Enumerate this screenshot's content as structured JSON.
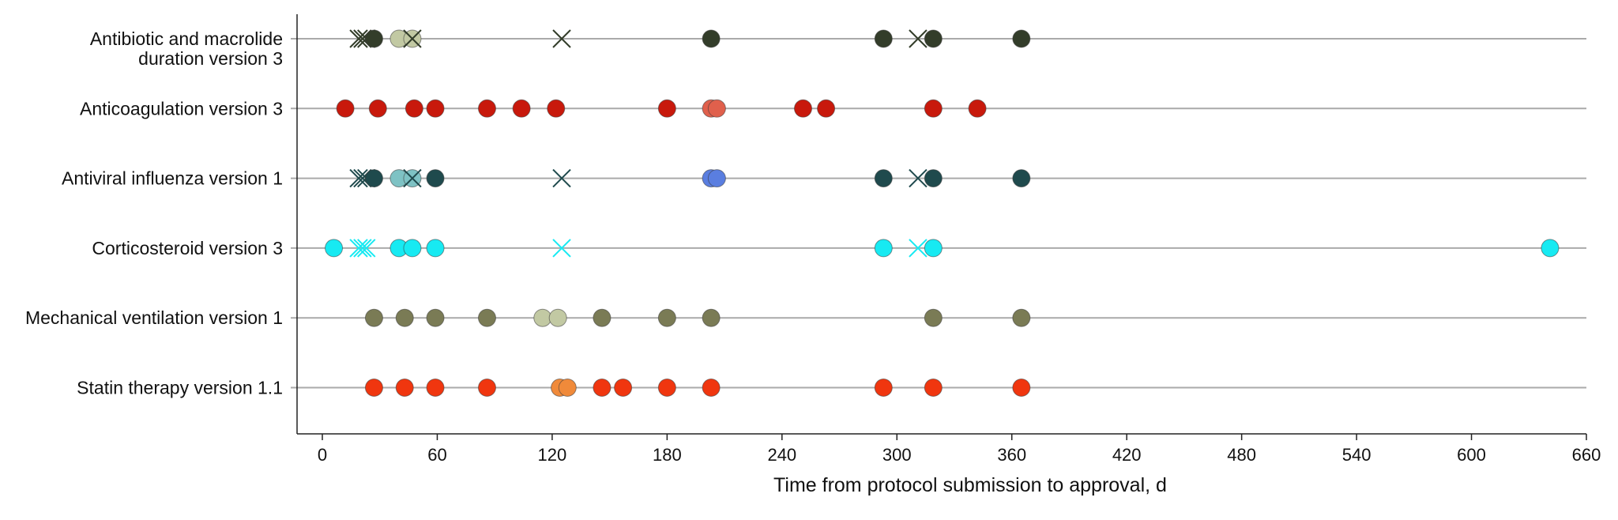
{
  "chart_data": {
    "type": "scatter",
    "title": "",
    "xlabel": "Time from protocol submission to approval, d",
    "ylabel": "",
    "xlim": [
      -13,
      660
    ],
    "xticks": [
      0,
      60,
      120,
      180,
      240,
      300,
      360,
      420,
      480,
      540,
      600,
      660
    ],
    "grid": "horizontal row lines only",
    "legend": "none",
    "rows": [
      {
        "label_lines": [
          "Antibiotic and macrolide",
          "duration version 3"
        ],
        "line_color": "#aaaaaa",
        "points": [
          {
            "x": 19,
            "marker": "x",
            "color": "#333d2a"
          },
          {
            "x": 21,
            "marker": "x",
            "color": "#333d2a"
          },
          {
            "x": 23,
            "marker": "x",
            "color": "#333d2a"
          },
          {
            "x": 27,
            "marker": "circle",
            "color": "#333d2a"
          },
          {
            "x": 40,
            "marker": "circle",
            "color": "#c2c9a3"
          },
          {
            "x": 47,
            "marker": "circle",
            "color": "#c2c9a3"
          },
          {
            "x": 47,
            "marker": "x",
            "color": "#333d2a"
          },
          {
            "x": 125,
            "marker": "x",
            "color": "#333d2a"
          },
          {
            "x": 203,
            "marker": "circle",
            "color": "#333d2a"
          },
          {
            "x": 293,
            "marker": "circle",
            "color": "#333d2a"
          },
          {
            "x": 311,
            "marker": "x",
            "color": "#333d2a"
          },
          {
            "x": 319,
            "marker": "circle",
            "color": "#333d2a"
          },
          {
            "x": 365,
            "marker": "circle",
            "color": "#333d2a"
          }
        ]
      },
      {
        "label_lines": [
          "Anticoagulation version 3"
        ],
        "line_color": "#aaaaaa",
        "points": [
          {
            "x": 12,
            "marker": "circle",
            "color": "#c8190c"
          },
          {
            "x": 29,
            "marker": "circle",
            "color": "#c8190c"
          },
          {
            "x": 48,
            "marker": "circle",
            "color": "#c8190c"
          },
          {
            "x": 59,
            "marker": "circle",
            "color": "#c8190c"
          },
          {
            "x": 86,
            "marker": "circle",
            "color": "#c8190c"
          },
          {
            "x": 104,
            "marker": "circle",
            "color": "#c8190c"
          },
          {
            "x": 122,
            "marker": "circle",
            "color": "#c8190c"
          },
          {
            "x": 180,
            "marker": "circle",
            "color": "#c8190c"
          },
          {
            "x": 203,
            "marker": "circle",
            "color": "#e0604c"
          },
          {
            "x": 206,
            "marker": "circle",
            "color": "#e0604c"
          },
          {
            "x": 251,
            "marker": "circle",
            "color": "#c8190c"
          },
          {
            "x": 263,
            "marker": "circle",
            "color": "#c8190c"
          },
          {
            "x": 319,
            "marker": "circle",
            "color": "#c8190c"
          },
          {
            "x": 342,
            "marker": "circle",
            "color": "#c8190c"
          }
        ]
      },
      {
        "label_lines": [
          "Antiviral influenza version 1"
        ],
        "line_color": "#aaaaaa",
        "points": [
          {
            "x": 19,
            "marker": "x",
            "color": "#1f4a4d"
          },
          {
            "x": 21,
            "marker": "x",
            "color": "#1f4a4d"
          },
          {
            "x": 23,
            "marker": "x",
            "color": "#1f4a4d"
          },
          {
            "x": 27,
            "marker": "circle",
            "color": "#1f4a4d"
          },
          {
            "x": 40,
            "marker": "circle",
            "color": "#7ec2c4"
          },
          {
            "x": 47,
            "marker": "circle",
            "color": "#7ec2c4"
          },
          {
            "x": 47,
            "marker": "x",
            "color": "#1f4a4d"
          },
          {
            "x": 59,
            "marker": "circle",
            "color": "#1f4a4d"
          },
          {
            "x": 125,
            "marker": "x",
            "color": "#1f4a4d"
          },
          {
            "x": 203,
            "marker": "circle",
            "color": "#5a7ee0"
          },
          {
            "x": 206,
            "marker": "circle",
            "color": "#5a7ee0"
          },
          {
            "x": 293,
            "marker": "circle",
            "color": "#1f4a4d"
          },
          {
            "x": 311,
            "marker": "x",
            "color": "#1f4a4d"
          },
          {
            "x": 319,
            "marker": "circle",
            "color": "#1f4a4d"
          },
          {
            "x": 365,
            "marker": "circle",
            "color": "#1f4a4d"
          }
        ]
      },
      {
        "label_lines": [
          "Corticosteroid version 3"
        ],
        "line_color": "#aaaaaa",
        "points": [
          {
            "x": 6,
            "marker": "circle",
            "color": "#17eaf2"
          },
          {
            "x": 19,
            "marker": "x",
            "color": "#17eaf2"
          },
          {
            "x": 21,
            "marker": "x",
            "color": "#17eaf2"
          },
          {
            "x": 23,
            "marker": "x",
            "color": "#17eaf2"
          },
          {
            "x": 40,
            "marker": "circle",
            "color": "#17eaf2"
          },
          {
            "x": 47,
            "marker": "circle",
            "color": "#17eaf2"
          },
          {
            "x": 59,
            "marker": "circle",
            "color": "#17eaf2"
          },
          {
            "x": 125,
            "marker": "x",
            "color": "#17eaf2"
          },
          {
            "x": 293,
            "marker": "circle",
            "color": "#17eaf2"
          },
          {
            "x": 311,
            "marker": "x",
            "color": "#17eaf2"
          },
          {
            "x": 319,
            "marker": "circle",
            "color": "#17eaf2"
          },
          {
            "x": 641,
            "marker": "circle",
            "color": "#17eaf2"
          }
        ]
      },
      {
        "label_lines": [
          "Mechanical ventilation version 1"
        ],
        "line_color": "#aaaaaa",
        "points": [
          {
            "x": 27,
            "marker": "circle",
            "color": "#7a7b55"
          },
          {
            "x": 43,
            "marker": "circle",
            "color": "#7a7b55"
          },
          {
            "x": 59,
            "marker": "circle",
            "color": "#7a7b55"
          },
          {
            "x": 86,
            "marker": "circle",
            "color": "#7a7b55"
          },
          {
            "x": 115,
            "marker": "circle",
            "color": "#c2c9a3"
          },
          {
            "x": 123,
            "marker": "circle",
            "color": "#c2c9a3"
          },
          {
            "x": 146,
            "marker": "circle",
            "color": "#7a7b55"
          },
          {
            "x": 180,
            "marker": "circle",
            "color": "#7a7b55"
          },
          {
            "x": 203,
            "marker": "circle",
            "color": "#7a7b55"
          },
          {
            "x": 319,
            "marker": "circle",
            "color": "#7a7b55"
          },
          {
            "x": 365,
            "marker": "circle",
            "color": "#7a7b55"
          }
        ]
      },
      {
        "label_lines": [
          "Statin therapy version 1.1"
        ],
        "line_color": "#aaaaaa",
        "points": [
          {
            "x": 27,
            "marker": "circle",
            "color": "#f0360f"
          },
          {
            "x": 43,
            "marker": "circle",
            "color": "#f0360f"
          },
          {
            "x": 59,
            "marker": "circle",
            "color": "#f0360f"
          },
          {
            "x": 86,
            "marker": "circle",
            "color": "#f0360f"
          },
          {
            "x": 124,
            "marker": "circle",
            "color": "#f08a3a"
          },
          {
            "x": 128,
            "marker": "circle",
            "color": "#f08a3a"
          },
          {
            "x": 146,
            "marker": "circle",
            "color": "#f0360f"
          },
          {
            "x": 157,
            "marker": "circle",
            "color": "#f0360f"
          },
          {
            "x": 180,
            "marker": "circle",
            "color": "#f0360f"
          },
          {
            "x": 203,
            "marker": "circle",
            "color": "#f0360f"
          },
          {
            "x": 293,
            "marker": "circle",
            "color": "#f0360f"
          },
          {
            "x": 319,
            "marker": "circle",
            "color": "#f0360f"
          },
          {
            "x": 365,
            "marker": "circle",
            "color": "#f0360f"
          }
        ]
      }
    ]
  }
}
